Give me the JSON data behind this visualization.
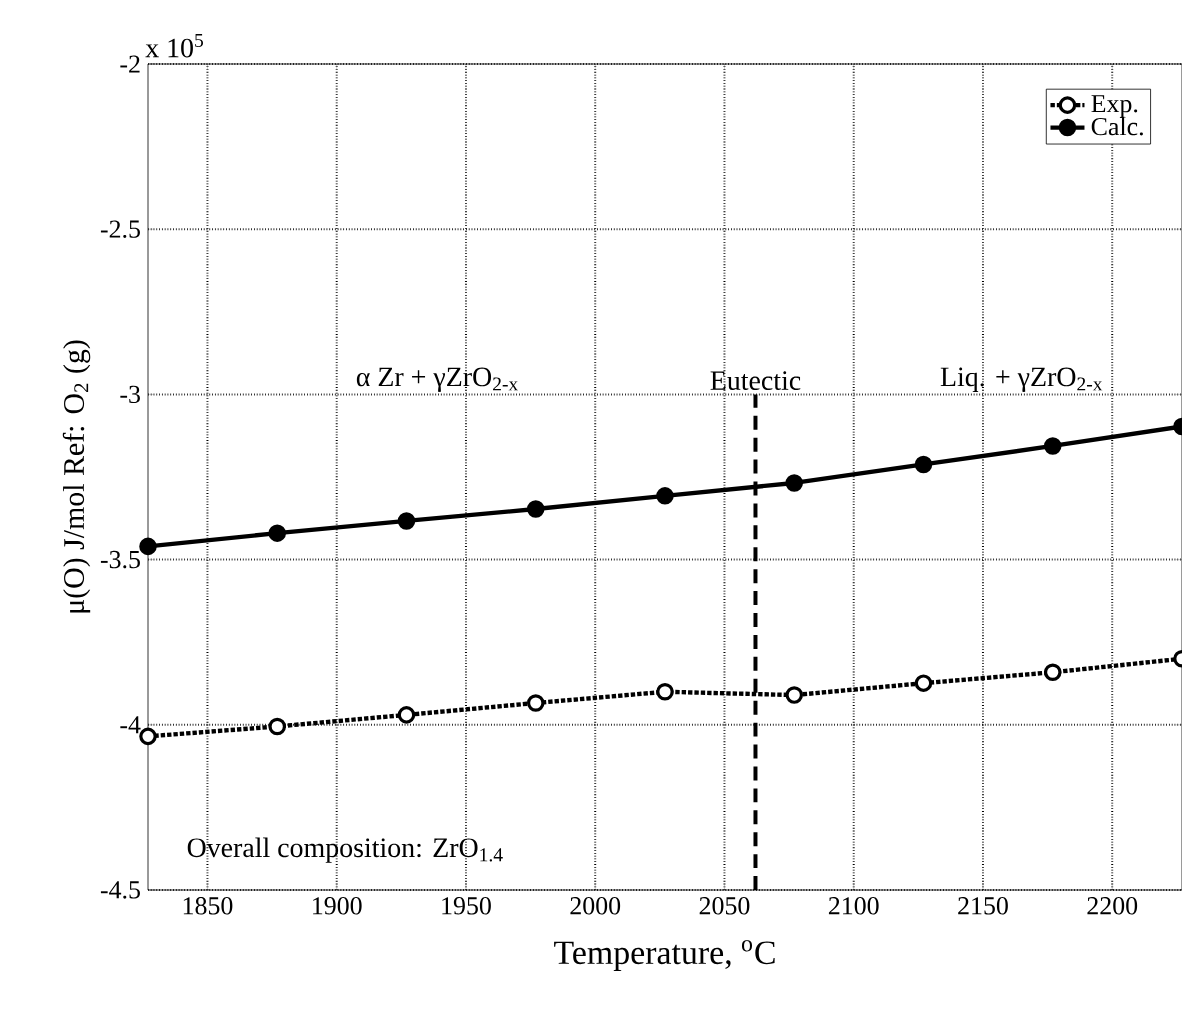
{
  "chart_data": {
    "type": "line",
    "xlabel": "Temperature, $^{o}$C",
    "ylabel": "μ(O) J/mol Ref: O$_{2}$ (g)",
    "x": [
      1827,
      1877,
      1927,
      1977,
      2027,
      2077,
      2127,
      2177,
      2227
    ],
    "series": [
      {
        "name": "Exp.",
        "color": "#000000",
        "line_style": "dotted",
        "values": [
          -4.035,
          -4.005,
          -3.97,
          -3.934,
          -3.9,
          -3.91,
          -3.874,
          -3.841,
          -3.8
        ]
      },
      {
        "name": "Calc.",
        "color": "#000000",
        "line_style": "solid",
        "values": [
          -3.46,
          -3.42,
          -3.383,
          -3.347,
          -3.307,
          -3.268,
          -3.212,
          -3.156,
          -3.097
        ]
      }
    ],
    "xlim": [
      1827,
      2227
    ],
    "ylim": [
      -4.5,
      -2
    ],
    "xticks": [
      1850,
      1900,
      1950,
      2000,
      2050,
      2100,
      2150,
      2200
    ],
    "yticks": [
      -4.5,
      -4,
      -3.5,
      -3,
      -2.5,
      -2
    ],
    "ref_lines": [
      {
        "axis": "x",
        "value": 2062,
        "label": "Eutectic",
        "line_style": "dashed"
      }
    ],
    "annotations": [
      "x 10$^{5}$",
      "α Zr + γZrO$_{2-x}$",
      "Liq. + γZrO$_{2-x}$",
      "Overall composition: ZrO$_{1.4}$"
    ],
    "grid": true,
    "legend": "top right",
    "marker": "circle"
  }
}
